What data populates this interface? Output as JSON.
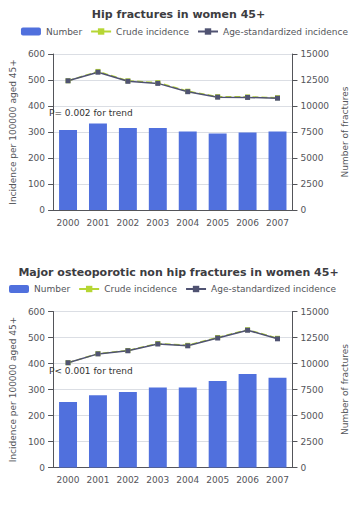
{
  "chart_data": [
    {
      "type": "bar",
      "title": "Hip fractures in women 45+",
      "categories": [
        "2000",
        "2001",
        "2002",
        "2003",
        "2004",
        "2005",
        "2006",
        "2007"
      ],
      "series": [
        {
          "name": "Number",
          "type": "bar",
          "values": [
            308,
            333,
            315,
            315,
            302,
            294,
            298,
            302
          ]
        },
        {
          "name": "Crude incidence",
          "type": "line",
          "marker": "square",
          "line_style": "dashed",
          "values": [
            497,
            533,
            497,
            490,
            457,
            436,
            435,
            432
          ]
        },
        {
          "name": "Age-standardized incidence",
          "type": "line",
          "marker": "square",
          "line_style": "solid",
          "values": [
            497,
            530,
            495,
            487,
            455,
            434,
            433,
            430
          ]
        }
      ],
      "ylabel": "Incidence per 100000 aged 45+",
      "y2label": "Number of fractures",
      "ylim": [
        0,
        600
      ],
      "yticks": [
        0,
        100,
        200,
        300,
        400,
        500,
        600
      ],
      "y2lim": [
        0,
        15000
      ],
      "y2ticks": [
        0,
        2500,
        5000,
        7500,
        10000,
        12500,
        15000
      ],
      "grid": true,
      "legend": "upper right",
      "annotation": "P= 0.002 for trend"
    },
    {
      "type": "bar",
      "title": "Major osteoporotic non hip fractures in women 45+",
      "categories": [
        "2000",
        "2001",
        "2002",
        "2003",
        "2004",
        "2005",
        "2006",
        "2007"
      ],
      "series": [
        {
          "name": "Number",
          "type": "bar",
          "values": [
            252,
            278,
            290,
            308,
            308,
            333,
            360,
            345
          ]
        },
        {
          "name": "Crude incidence",
          "type": "line",
          "marker": "square",
          "line_style": "dashed",
          "values": [
            403,
            438,
            450,
            477,
            470,
            500,
            530,
            497
          ]
        },
        {
          "name": "Age-standardized incidence",
          "type": "line",
          "marker": "square",
          "line_style": "solid",
          "values": [
            403,
            437,
            449,
            475,
            468,
            498,
            528,
            495
          ]
        }
      ],
      "ylabel": "Incidence per 100000 aged 45+",
      "y2label": "Number of fractures",
      "ylim": [
        0,
        600
      ],
      "yticks": [
        0,
        100,
        200,
        300,
        400,
        500,
        600
      ],
      "y2lim": [
        0,
        15000
      ],
      "y2ticks": [
        0,
        2500,
        5000,
        7500,
        10000,
        12500,
        15000
      ],
      "grid": true,
      "legend": "upper left",
      "annotation": "P< 0.001 for trend"
    }
  ]
}
